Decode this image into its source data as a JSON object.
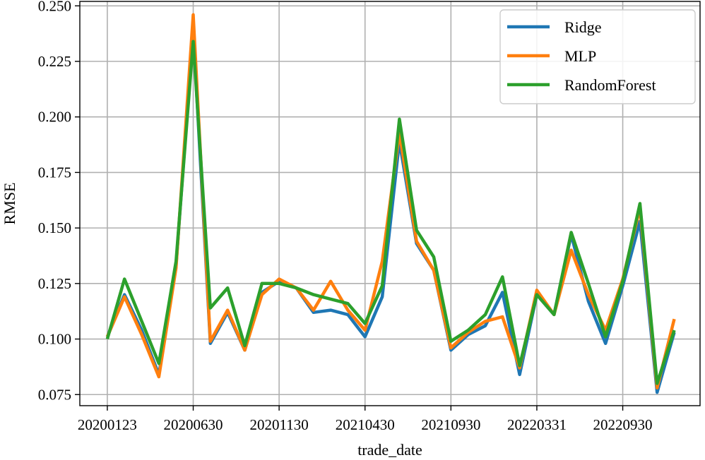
{
  "chart_data": {
    "type": "line",
    "xlabel": "trade_date",
    "ylabel": "RMSE",
    "ylim": [
      0.07,
      0.252
    ],
    "xlim": [
      -1.6,
      34.5
    ],
    "grid": true,
    "legend_position": "top-right",
    "x_ticks": [
      {
        "index": 0,
        "label": "20200123"
      },
      {
        "index": 5,
        "label": "20200630"
      },
      {
        "index": 10,
        "label": "20201130"
      },
      {
        "index": 15,
        "label": "20210430"
      },
      {
        "index": 20,
        "label": "20210930"
      },
      {
        "index": 25,
        "label": "20220331"
      },
      {
        "index": 30,
        "label": "20220930"
      }
    ],
    "y_ticks": [
      0.075,
      0.1,
      0.125,
      0.15,
      0.175,
      0.2,
      0.225,
      0.25
    ],
    "y_tick_labels": [
      "0.075",
      "0.100",
      "0.125",
      "0.150",
      "0.175",
      "0.200",
      "0.225",
      "0.250"
    ],
    "x": [
      0,
      1,
      2,
      3,
      4,
      5,
      6,
      7,
      8,
      9,
      10,
      11,
      12,
      13,
      14,
      15,
      16,
      17,
      18,
      19,
      20,
      21,
      22,
      23,
      24,
      25,
      26,
      27,
      28,
      29,
      30,
      31,
      32,
      33
    ],
    "series": [
      {
        "name": "Ridge",
        "color": "#1f77b4",
        "values": [
          0.101,
          0.12,
          0.104,
          0.084,
          0.133,
          0.239,
          0.098,
          0.112,
          0.095,
          0.121,
          0.126,
          0.123,
          0.112,
          0.113,
          0.111,
          0.101,
          0.119,
          0.189,
          0.143,
          0.131,
          0.095,
          0.102,
          0.106,
          0.121,
          0.084,
          0.12,
          0.111,
          0.147,
          0.117,
          0.098,
          0.124,
          0.153,
          0.076,
          0.103
        ]
      },
      {
        "name": "MLP",
        "color": "#ff7f0e",
        "values": [
          0.101,
          0.119,
          0.102,
          0.083,
          0.132,
          0.246,
          0.099,
          0.113,
          0.095,
          0.12,
          0.127,
          0.123,
          0.113,
          0.126,
          0.113,
          0.104,
          0.135,
          0.193,
          0.144,
          0.131,
          0.096,
          0.103,
          0.108,
          0.11,
          0.087,
          0.122,
          0.111,
          0.14,
          0.12,
          0.104,
          0.127,
          0.159,
          0.078,
          0.109
        ]
      },
      {
        "name": "RandomForest",
        "color": "#2ca02c",
        "values": [
          0.1,
          0.127,
          0.108,
          0.089,
          0.135,
          0.234,
          0.114,
          0.123,
          0.097,
          0.125,
          0.125,
          0.123,
          0.12,
          0.118,
          0.116,
          0.107,
          0.124,
          0.199,
          0.149,
          0.137,
          0.099,
          0.104,
          0.111,
          0.128,
          0.088,
          0.12,
          0.111,
          0.148,
          0.125,
          0.101,
          0.126,
          0.161,
          0.08,
          0.104
        ]
      }
    ]
  }
}
